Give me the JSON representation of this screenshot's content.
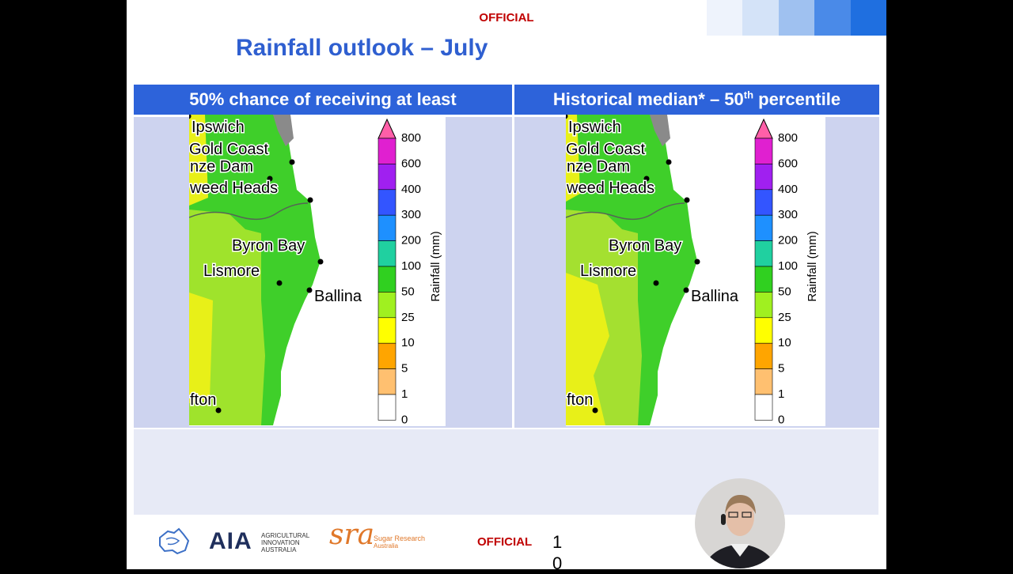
{
  "header": {
    "classification": "OFFICIAL",
    "title": "Rainfall outlook – July"
  },
  "panels": [
    {
      "heading": {
        "text": "50% chance of receiving at least"
      },
      "place_labels": [
        "Ipswich",
        "Gold Coast",
        "nze Dam",
        "weed Heads",
        "Byron Bay",
        "Lismore",
        "Ballina",
        "fton"
      ],
      "legend": {
        "title": "Rainfall (mm)",
        "ticks": [
          800,
          600,
          400,
          300,
          200,
          100,
          50,
          25,
          10,
          5,
          1,
          0
        ]
      }
    },
    {
      "heading": {
        "text": "Historical median* – 50",
        "sup": "th",
        "after": " percentile"
      },
      "place_labels": [
        "Ipswich",
        "Gold Coast",
        "nze Dam",
        "weed Heads",
        "Byron Bay",
        "Lismore",
        "Ballina",
        "fton"
      ],
      "legend": {
        "title": "Rainfall (mm)",
        "ticks": [
          800,
          600,
          400,
          300,
          200,
          100,
          50,
          25,
          10,
          5,
          1,
          0
        ]
      }
    }
  ],
  "footer": {
    "aia_logo": "AIA",
    "aia_subtitle": "AGRICULTURAL INNOVATION AUSTRALIA",
    "sra_logo": "sra",
    "sra_name": "Sugar Research",
    "sra_country": "Australia",
    "classification": "OFFICIAL",
    "page_number": "10"
  }
}
